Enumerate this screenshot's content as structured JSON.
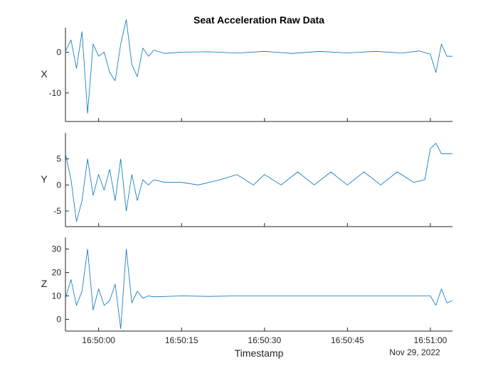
{
  "chart_data": {
    "type": "line",
    "title": "Seat Acceleration Raw Data",
    "xlabel": "Timestamp",
    "x_date_label": "Nov 29, 2022",
    "x_range": [
      "16:49:54",
      "16:51:04"
    ],
    "x_ticks": [
      "16:50:00",
      "16:50:15",
      "16:50:30",
      "16:50:45",
      "16:51:00"
    ],
    "line_color": "#0072BD",
    "grid": false,
    "panels": [
      {
        "name": "X",
        "ylabel": "X",
        "ylim": [
          -17,
          6
        ],
        "yticks": [
          0,
          -10
        ],
        "points": [
          [
            "16:49:54",
            0.2
          ],
          [
            "16:49:55",
            3
          ],
          [
            "16:49:56",
            -4
          ],
          [
            "16:49:57",
            5
          ],
          [
            "16:49:58",
            -15
          ],
          [
            "16:49:59",
            2
          ],
          [
            "16:50:00",
            -1
          ],
          [
            "16:50:01",
            0
          ],
          [
            "16:50:02",
            -5
          ],
          [
            "16:50:03",
            -7
          ],
          [
            "16:50:04",
            2
          ],
          [
            "16:50:05",
            8
          ],
          [
            "16:50:06",
            -3
          ],
          [
            "16:50:07",
            -6
          ],
          [
            "16:50:08",
            1
          ],
          [
            "16:50:09",
            -1
          ],
          [
            "16:50:10",
            0.5
          ],
          [
            "16:50:12",
            -0.3
          ],
          [
            "16:50:15",
            0
          ],
          [
            "16:50:20",
            0.1
          ],
          [
            "16:50:25",
            -0.2
          ],
          [
            "16:50:30",
            0.2
          ],
          [
            "16:50:35",
            -0.3
          ],
          [
            "16:50:40",
            0.2
          ],
          [
            "16:50:45",
            -0.2
          ],
          [
            "16:50:50",
            0.2
          ],
          [
            "16:50:55",
            -0.2
          ],
          [
            "16:50:58",
            0.3
          ],
          [
            "16:51:00",
            -0.5
          ],
          [
            "16:51:01",
            -5
          ],
          [
            "16:51:02",
            2
          ],
          [
            "16:51:03",
            -1
          ],
          [
            "16:51:04",
            -1
          ]
        ]
      },
      {
        "name": "Y",
        "ylabel": "Y",
        "ylim": [
          -8,
          10
        ],
        "yticks": [
          5,
          0,
          -5
        ],
        "points": [
          [
            "16:49:54",
            6
          ],
          [
            "16:49:55",
            1
          ],
          [
            "16:49:56",
            -7
          ],
          [
            "16:49:57",
            -3
          ],
          [
            "16:49:58",
            5
          ],
          [
            "16:49:59",
            -2
          ],
          [
            "16:50:00",
            2
          ],
          [
            "16:50:01",
            -1
          ],
          [
            "16:50:02",
            3
          ],
          [
            "16:50:03",
            -3
          ],
          [
            "16:50:04",
            5
          ],
          [
            "16:50:05",
            -5
          ],
          [
            "16:50:06",
            2
          ],
          [
            "16:50:07",
            -3
          ],
          [
            "16:50:08",
            1
          ],
          [
            "16:50:09",
            0
          ],
          [
            "16:50:10",
            1
          ],
          [
            "16:50:12",
            0.5
          ],
          [
            "16:50:15",
            0.5
          ],
          [
            "16:50:18",
            0
          ],
          [
            "16:50:22",
            1
          ],
          [
            "16:50:25",
            2
          ],
          [
            "16:50:28",
            0
          ],
          [
            "16:50:30",
            2
          ],
          [
            "16:50:33",
            0
          ],
          [
            "16:50:36",
            2.5
          ],
          [
            "16:50:39",
            0
          ],
          [
            "16:50:42",
            2.5
          ],
          [
            "16:50:45",
            0
          ],
          [
            "16:50:48",
            2.5
          ],
          [
            "16:50:51",
            0
          ],
          [
            "16:50:54",
            2.5
          ],
          [
            "16:50:57",
            0.5
          ],
          [
            "16:50:59",
            1
          ],
          [
            "16:51:00",
            7
          ],
          [
            "16:51:01",
            8
          ],
          [
            "16:51:02",
            6
          ],
          [
            "16:51:04",
            6
          ]
        ]
      },
      {
        "name": "Z",
        "ylabel": "Z",
        "ylim": [
          -5,
          35
        ],
        "yticks": [
          30,
          20,
          10,
          0
        ],
        "points": [
          [
            "16:49:54",
            9
          ],
          [
            "16:49:55",
            17
          ],
          [
            "16:49:56",
            6
          ],
          [
            "16:49:57",
            12
          ],
          [
            "16:49:58",
            30
          ],
          [
            "16:49:59",
            4
          ],
          [
            "16:50:00",
            13
          ],
          [
            "16:50:01",
            6
          ],
          [
            "16:50:02",
            8
          ],
          [
            "16:50:03",
            15
          ],
          [
            "16:50:04",
            -4
          ],
          [
            "16:50:05",
            30
          ],
          [
            "16:50:06",
            7
          ],
          [
            "16:50:07",
            12
          ],
          [
            "16:50:08",
            9
          ],
          [
            "16:50:09",
            10
          ],
          [
            "16:50:10",
            9.6
          ],
          [
            "16:50:15",
            10
          ],
          [
            "16:50:20",
            9.8
          ],
          [
            "16:50:25",
            10
          ],
          [
            "16:50:30",
            10
          ],
          [
            "16:50:35",
            10
          ],
          [
            "16:50:40",
            10
          ],
          [
            "16:50:45",
            10
          ],
          [
            "16:50:50",
            10
          ],
          [
            "16:50:55",
            10
          ],
          [
            "16:51:00",
            10
          ],
          [
            "16:51:01",
            6
          ],
          [
            "16:51:02",
            13
          ],
          [
            "16:51:03",
            7
          ],
          [
            "16:51:04",
            8
          ]
        ]
      }
    ]
  }
}
